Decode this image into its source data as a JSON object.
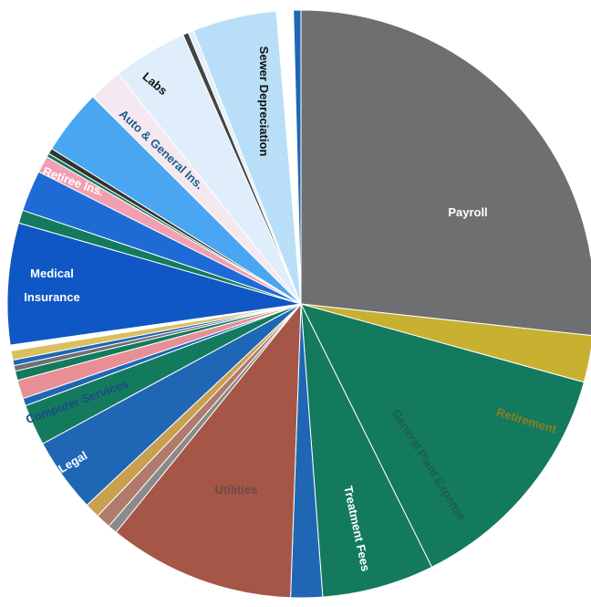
{
  "chart_data": {
    "type": "pie",
    "title": "",
    "slices": [
      {
        "label": "Payroll",
        "value": 26.0,
        "color": "#6f6f71"
      },
      {
        "label": "Retirement",
        "value": 2.5,
        "color": "#c8b030"
      },
      {
        "label": "General Plant Expense",
        "value": 13.0,
        "color": "#137a5e"
      },
      {
        "label": "Treatment Fees",
        "value": 6.0,
        "color": "#137a5e"
      },
      {
        "label": "",
        "value": 1.7,
        "color": "#1f67b5"
      },
      {
        "label": "Utilities",
        "value": 10.0,
        "color": "#a55646"
      },
      {
        "label": "",
        "value": 0.5,
        "color": "#8a8a8a"
      },
      {
        "label": "Legal",
        "value": 0.8,
        "color": "#b07a6c"
      },
      {
        "label": "",
        "value": 0.8,
        "color": "#c9a050"
      },
      {
        "label": "Computer Services",
        "value": 4.0,
        "color": "#1f67b5"
      },
      {
        "label": "",
        "value": 2.2,
        "color": "#137a5e"
      },
      {
        "label": "",
        "value": 0.4,
        "color": "#1f67b5"
      },
      {
        "label": "",
        "value": 1.0,
        "color": "#e78e96"
      },
      {
        "label": "",
        "value": 0.5,
        "color": "#137a5e"
      },
      {
        "label": "",
        "value": 0.3,
        "color": "#6f6f71"
      },
      {
        "label": "",
        "value": 0.3,
        "color": "#1f67b5"
      },
      {
        "label": "",
        "value": 0.5,
        "color": "#d8c060"
      },
      {
        "label": "",
        "value": 0.3,
        "color": "#ffffff"
      },
      {
        "label": "Medical Insurance",
        "value": 6.5,
        "color": "#0f57c4"
      },
      {
        "label": "",
        "value": 0.7,
        "color": "#137a5e"
      },
      {
        "label": "Retiree Ins.",
        "value": 2.2,
        "color": "#1e6bd6"
      },
      {
        "label": "",
        "value": 0.9,
        "color": "#f29fb1"
      },
      {
        "label": "",
        "value": 0.2,
        "color": "#137a5e"
      },
      {
        "label": "",
        "value": 0.3,
        "color": "#333333"
      },
      {
        "label": "Auto & General Ins.",
        "value": 3.5,
        "color": "#4aa6f0"
      },
      {
        "label": "",
        "value": 1.8,
        "color": "#f5e8f0"
      },
      {
        "label": "Labs",
        "value": 4.0,
        "color": "#dfeefa"
      },
      {
        "label": "",
        "value": 0.3,
        "color": "#444444"
      },
      {
        "label": "",
        "value": 0.3,
        "color": "#e0f0fb"
      },
      {
        "label": "Sewer Depreciation",
        "value": 4.5,
        "color": "#b9def7"
      },
      {
        "label": "",
        "value": 0.9,
        "color": "#ffffff"
      },
      {
        "label": "",
        "value": 0.4,
        "color": "#1f67b5"
      }
    ],
    "labels": [
      {
        "text": "Payroll",
        "color": "#ffffff"
      },
      {
        "text": "Retirement",
        "color": "#8e7c22"
      },
      {
        "text": "General Plant Expense",
        "color": "#1c5f4a"
      },
      {
        "text": "Treatment Fees",
        "color": "#ffffff"
      },
      {
        "text": "Utilities",
        "color": "#6b4a44"
      },
      {
        "text": "Legal",
        "color": "#ffffff"
      },
      {
        "text": "Computer Services",
        "color": "#1a4c82"
      },
      {
        "text": "Medical",
        "color": "#ffffff"
      },
      {
        "text": "Insurance",
        "color": "#ffffff"
      },
      {
        "text": "Retiree Ins.",
        "color": "#ffffff"
      },
      {
        "text": "Auto & General Ins.",
        "color": "#1c5f8a"
      },
      {
        "text": "Labs",
        "color": "#111111"
      },
      {
        "text": "Sewer Depreciation",
        "color": "#111111"
      }
    ],
    "start": "top, clockwise"
  }
}
